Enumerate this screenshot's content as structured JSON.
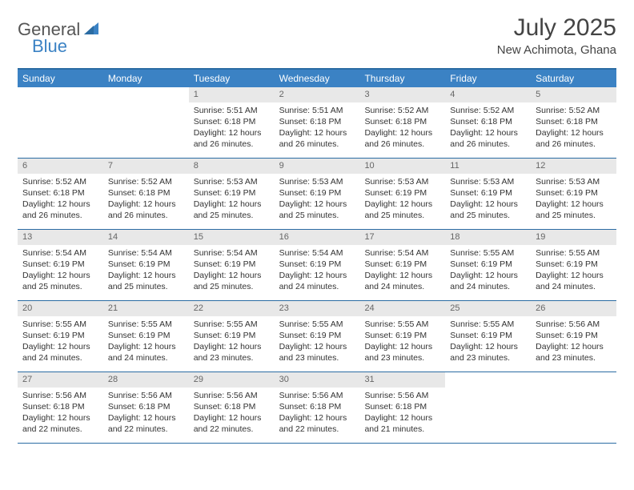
{
  "brand": {
    "part1": "General",
    "part2": "Blue"
  },
  "title": "July 2025",
  "location": "New Achimota, Ghana",
  "colors": {
    "header_bg": "#3b82c4",
    "header_text": "#ffffff",
    "border": "#2b6ca3",
    "daynum_bg": "#e8e8e8",
    "daynum_text": "#666666",
    "body_text": "#333333",
    "brand_gray": "#555555",
    "brand_blue": "#3b82c4"
  },
  "weekdays": [
    "Sunday",
    "Monday",
    "Tuesday",
    "Wednesday",
    "Thursday",
    "Friday",
    "Saturday"
  ],
  "weeks": [
    [
      null,
      null,
      {
        "n": "1",
        "sr": "5:51 AM",
        "ss": "6:18 PM",
        "dl": "12 hours and 26 minutes."
      },
      {
        "n": "2",
        "sr": "5:51 AM",
        "ss": "6:18 PM",
        "dl": "12 hours and 26 minutes."
      },
      {
        "n": "3",
        "sr": "5:52 AM",
        "ss": "6:18 PM",
        "dl": "12 hours and 26 minutes."
      },
      {
        "n": "4",
        "sr": "5:52 AM",
        "ss": "6:18 PM",
        "dl": "12 hours and 26 minutes."
      },
      {
        "n": "5",
        "sr": "5:52 AM",
        "ss": "6:18 PM",
        "dl": "12 hours and 26 minutes."
      }
    ],
    [
      {
        "n": "6",
        "sr": "5:52 AM",
        "ss": "6:18 PM",
        "dl": "12 hours and 26 minutes."
      },
      {
        "n": "7",
        "sr": "5:52 AM",
        "ss": "6:18 PM",
        "dl": "12 hours and 26 minutes."
      },
      {
        "n": "8",
        "sr": "5:53 AM",
        "ss": "6:19 PM",
        "dl": "12 hours and 25 minutes."
      },
      {
        "n": "9",
        "sr": "5:53 AM",
        "ss": "6:19 PM",
        "dl": "12 hours and 25 minutes."
      },
      {
        "n": "10",
        "sr": "5:53 AM",
        "ss": "6:19 PM",
        "dl": "12 hours and 25 minutes."
      },
      {
        "n": "11",
        "sr": "5:53 AM",
        "ss": "6:19 PM",
        "dl": "12 hours and 25 minutes."
      },
      {
        "n": "12",
        "sr": "5:53 AM",
        "ss": "6:19 PM",
        "dl": "12 hours and 25 minutes."
      }
    ],
    [
      {
        "n": "13",
        "sr": "5:54 AM",
        "ss": "6:19 PM",
        "dl": "12 hours and 25 minutes."
      },
      {
        "n": "14",
        "sr": "5:54 AM",
        "ss": "6:19 PM",
        "dl": "12 hours and 25 minutes."
      },
      {
        "n": "15",
        "sr": "5:54 AM",
        "ss": "6:19 PM",
        "dl": "12 hours and 25 minutes."
      },
      {
        "n": "16",
        "sr": "5:54 AM",
        "ss": "6:19 PM",
        "dl": "12 hours and 24 minutes."
      },
      {
        "n": "17",
        "sr": "5:54 AM",
        "ss": "6:19 PM",
        "dl": "12 hours and 24 minutes."
      },
      {
        "n": "18",
        "sr": "5:55 AM",
        "ss": "6:19 PM",
        "dl": "12 hours and 24 minutes."
      },
      {
        "n": "19",
        "sr": "5:55 AM",
        "ss": "6:19 PM",
        "dl": "12 hours and 24 minutes."
      }
    ],
    [
      {
        "n": "20",
        "sr": "5:55 AM",
        "ss": "6:19 PM",
        "dl": "12 hours and 24 minutes."
      },
      {
        "n": "21",
        "sr": "5:55 AM",
        "ss": "6:19 PM",
        "dl": "12 hours and 24 minutes."
      },
      {
        "n": "22",
        "sr": "5:55 AM",
        "ss": "6:19 PM",
        "dl": "12 hours and 23 minutes."
      },
      {
        "n": "23",
        "sr": "5:55 AM",
        "ss": "6:19 PM",
        "dl": "12 hours and 23 minutes."
      },
      {
        "n": "24",
        "sr": "5:55 AM",
        "ss": "6:19 PM",
        "dl": "12 hours and 23 minutes."
      },
      {
        "n": "25",
        "sr": "5:55 AM",
        "ss": "6:19 PM",
        "dl": "12 hours and 23 minutes."
      },
      {
        "n": "26",
        "sr": "5:56 AM",
        "ss": "6:19 PM",
        "dl": "12 hours and 23 minutes."
      }
    ],
    [
      {
        "n": "27",
        "sr": "5:56 AM",
        "ss": "6:18 PM",
        "dl": "12 hours and 22 minutes."
      },
      {
        "n": "28",
        "sr": "5:56 AM",
        "ss": "6:18 PM",
        "dl": "12 hours and 22 minutes."
      },
      {
        "n": "29",
        "sr": "5:56 AM",
        "ss": "6:18 PM",
        "dl": "12 hours and 22 minutes."
      },
      {
        "n": "30",
        "sr": "5:56 AM",
        "ss": "6:18 PM",
        "dl": "12 hours and 22 minutes."
      },
      {
        "n": "31",
        "sr": "5:56 AM",
        "ss": "6:18 PM",
        "dl": "12 hours and 21 minutes."
      },
      null,
      null
    ]
  ],
  "labels": {
    "sunrise": "Sunrise:",
    "sunset": "Sunset:",
    "daylight": "Daylight:"
  }
}
